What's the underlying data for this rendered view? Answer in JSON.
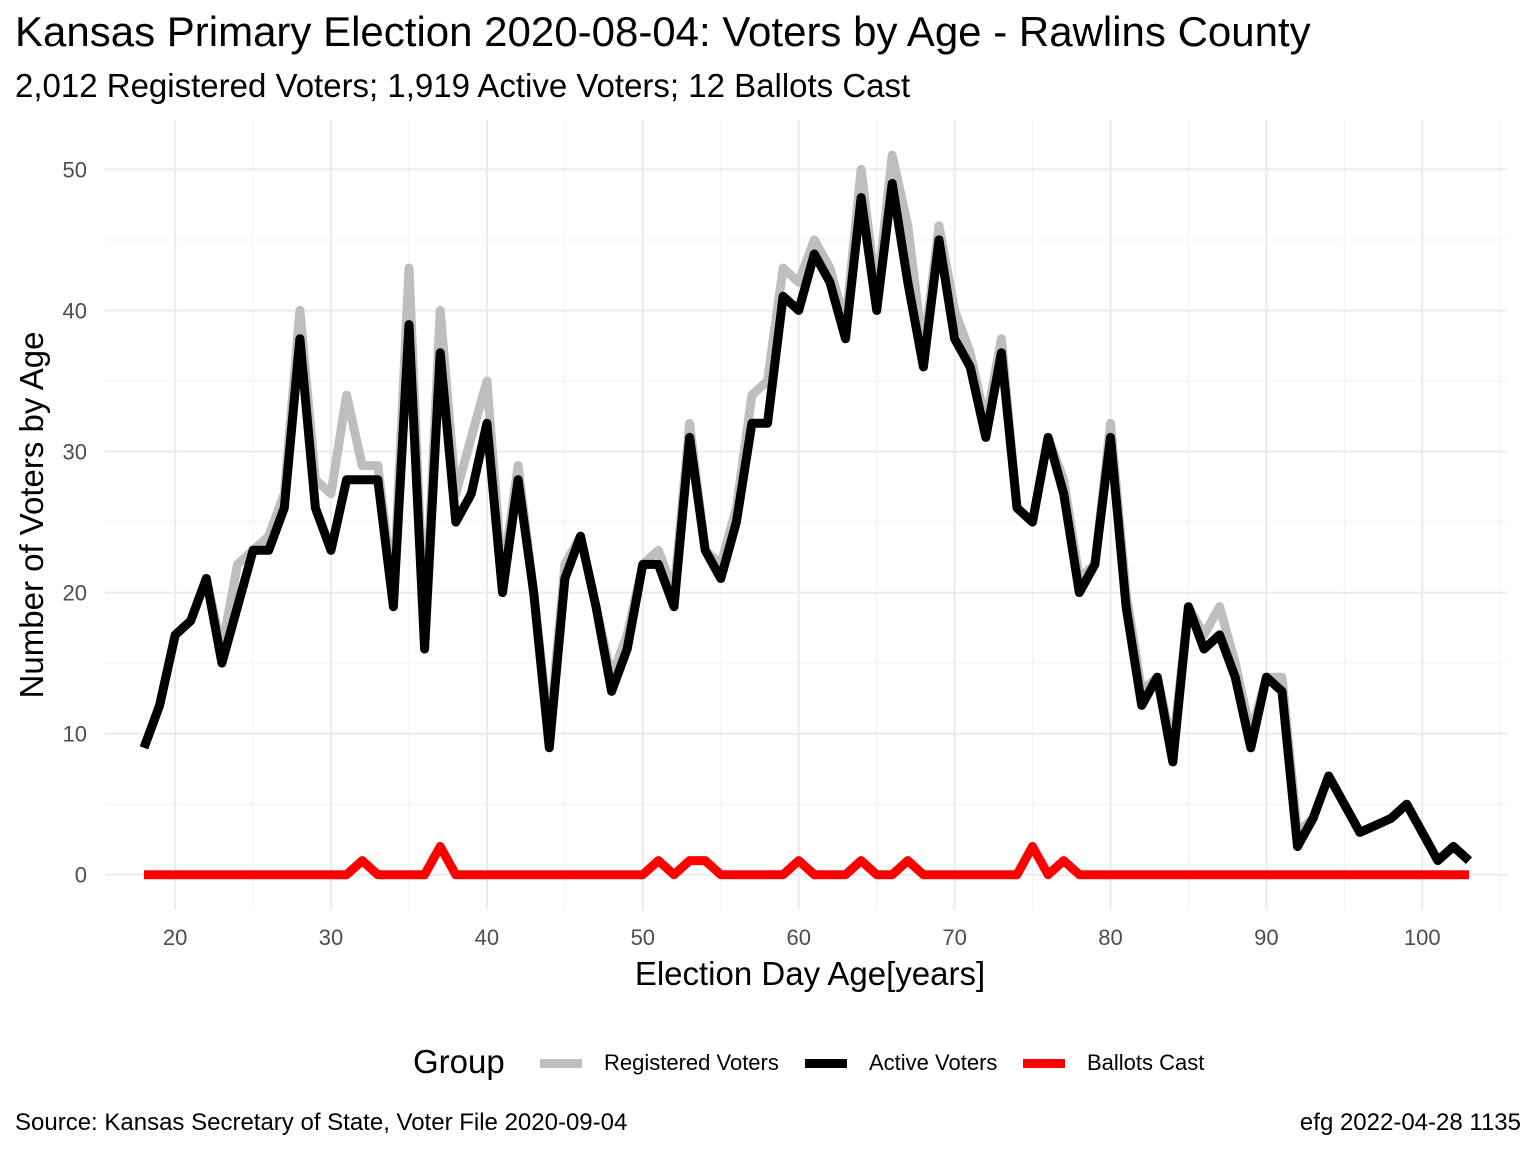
{
  "title": "Kansas Primary Election 2020-08-04:  Voters by Age - Rawlins County",
  "subtitle": "2,012 Registered Voters; 1,919 Active Voters; 12 Ballots Cast",
  "caption_left": "Source:  Kansas Secretary of State, Voter File  2020-09-04",
  "caption_right": "efg 2022-04-28 1135",
  "legend": {
    "title": "Group",
    "items": [
      {
        "label": "Registered Voters",
        "color": "#bebebe"
      },
      {
        "label": "Active Voters",
        "color": "#000000"
      },
      {
        "label": "Ballots Cast",
        "color": "#ff0000"
      }
    ]
  },
  "chart_data": {
    "type": "line",
    "xlabel": "Election Day Age[years]",
    "ylabel": "Number of Voters by Age",
    "xlim": [
      15.5,
      105.5
    ],
    "ylim": [
      -2.5,
      53.5
    ],
    "x_ticks": [
      20,
      30,
      40,
      50,
      60,
      70,
      80,
      90,
      100
    ],
    "y_ticks": [
      0,
      10,
      20,
      30,
      40,
      50
    ],
    "grid": true,
    "legend_position": "bottom",
    "series": [
      {
        "name": "Registered Voters",
        "color": "#bebebe",
        "points": [
          [
            18,
            9
          ],
          [
            19,
            12
          ],
          [
            20,
            17
          ],
          [
            21,
            18
          ],
          [
            22,
            21
          ],
          [
            23,
            16
          ],
          [
            24,
            22
          ],
          [
            25,
            23
          ],
          [
            26,
            24
          ],
          [
            27,
            27
          ],
          [
            28,
            40
          ],
          [
            29,
            28
          ],
          [
            30,
            27
          ],
          [
            31,
            34
          ],
          [
            32,
            29
          ],
          [
            33,
            29
          ],
          [
            34,
            20
          ],
          [
            35,
            43
          ],
          [
            36,
            17
          ],
          [
            37,
            40
          ],
          [
            38,
            27
          ],
          [
            39,
            31
          ],
          [
            40,
            35
          ],
          [
            41,
            21
          ],
          [
            42,
            29
          ],
          [
            43,
            20
          ],
          [
            44,
            10
          ],
          [
            45,
            22
          ],
          [
            46,
            24
          ],
          [
            47,
            19
          ],
          [
            48,
            14
          ],
          [
            49,
            17
          ],
          [
            50,
            22
          ],
          [
            51,
            23
          ],
          [
            52,
            20
          ],
          [
            53,
            32
          ],
          [
            54,
            23
          ],
          [
            55,
            22
          ],
          [
            56,
            26
          ],
          [
            57,
            34
          ],
          [
            58,
            35
          ],
          [
            59,
            43
          ],
          [
            60,
            42
          ],
          [
            61,
            45
          ],
          [
            62,
            43
          ],
          [
            63,
            39
          ],
          [
            64,
            50
          ],
          [
            65,
            41
          ],
          [
            66,
            51
          ],
          [
            67,
            46
          ],
          [
            68,
            37
          ],
          [
            69,
            46
          ],
          [
            70,
            40
          ],
          [
            71,
            37
          ],
          [
            72,
            32
          ],
          [
            73,
            38
          ],
          [
            74,
            26
          ],
          [
            75,
            25
          ],
          [
            76,
            31
          ],
          [
            77,
            28
          ],
          [
            78,
            21
          ],
          [
            79,
            22
          ],
          [
            80,
            32
          ],
          [
            81,
            20
          ],
          [
            82,
            13
          ],
          [
            83,
            14
          ],
          [
            84,
            9
          ],
          [
            85,
            19
          ],
          [
            86,
            17
          ],
          [
            87,
            19
          ],
          [
            88,
            15
          ],
          [
            89,
            10
          ],
          [
            90,
            14
          ],
          [
            91,
            14
          ],
          [
            92,
            3
          ],
          [
            93,
            4
          ],
          [
            94,
            7
          ],
          [
            95,
            5
          ],
          [
            96,
            3
          ],
          [
            97,
            3.5
          ],
          [
            98,
            4
          ],
          [
            99,
            5
          ],
          [
            100,
            3
          ],
          [
            101,
            1
          ],
          [
            102,
            2
          ],
          [
            103,
            1
          ]
        ]
      },
      {
        "name": "Active Voters",
        "color": "#000000",
        "points": [
          [
            18,
            9
          ],
          [
            19,
            12
          ],
          [
            20,
            17
          ],
          [
            21,
            18
          ],
          [
            22,
            21
          ],
          [
            23,
            15
          ],
          [
            24,
            19
          ],
          [
            25,
            23
          ],
          [
            26,
            23
          ],
          [
            27,
            26
          ],
          [
            28,
            38
          ],
          [
            29,
            26
          ],
          [
            30,
            23
          ],
          [
            31,
            28
          ],
          [
            32,
            28
          ],
          [
            33,
            28
          ],
          [
            34,
            19
          ],
          [
            35,
            39
          ],
          [
            36,
            16
          ],
          [
            37,
            37
          ],
          [
            38,
            25
          ],
          [
            39,
            27
          ],
          [
            40,
            32
          ],
          [
            41,
            20
          ],
          [
            42,
            28
          ],
          [
            43,
            20
          ],
          [
            44,
            9
          ],
          [
            45,
            21
          ],
          [
            46,
            24
          ],
          [
            47,
            19
          ],
          [
            48,
            13
          ],
          [
            49,
            16
          ],
          [
            50,
            22
          ],
          [
            51,
            22
          ],
          [
            52,
            19
          ],
          [
            53,
            31
          ],
          [
            54,
            23
          ],
          [
            55,
            21
          ],
          [
            56,
            25
          ],
          [
            57,
            32
          ],
          [
            58,
            32
          ],
          [
            59,
            41
          ],
          [
            60,
            40
          ],
          [
            61,
            44
          ],
          [
            62,
            42
          ],
          [
            63,
            38
          ],
          [
            64,
            48
          ],
          [
            65,
            40
          ],
          [
            66,
            49
          ],
          [
            67,
            42
          ],
          [
            68,
            36
          ],
          [
            69,
            45
          ],
          [
            70,
            38
          ],
          [
            71,
            36
          ],
          [
            72,
            31
          ],
          [
            73,
            37
          ],
          [
            74,
            26
          ],
          [
            75,
            25
          ],
          [
            76,
            31
          ],
          [
            77,
            27
          ],
          [
            78,
            20
          ],
          [
            79,
            22
          ],
          [
            80,
            31
          ],
          [
            81,
            19
          ],
          [
            82,
            12
          ],
          [
            83,
            14
          ],
          [
            84,
            8
          ],
          [
            85,
            19
          ],
          [
            86,
            16
          ],
          [
            87,
            17
          ],
          [
            88,
            14
          ],
          [
            89,
            9
          ],
          [
            90,
            14
          ],
          [
            91,
            13
          ],
          [
            92,
            2
          ],
          [
            93,
            4
          ],
          [
            94,
            7
          ],
          [
            95,
            5
          ],
          [
            96,
            3
          ],
          [
            97,
            3.5
          ],
          [
            98,
            4
          ],
          [
            99,
            5
          ],
          [
            100,
            3
          ],
          [
            101,
            1
          ],
          [
            102,
            2
          ],
          [
            103,
            1
          ]
        ]
      },
      {
        "name": "Ballots Cast",
        "color": "#ff0000",
        "points": [
          [
            18,
            0
          ],
          [
            31,
            0
          ],
          [
            32,
            1
          ],
          [
            33,
            0
          ],
          [
            36,
            0
          ],
          [
            37,
            2
          ],
          [
            38,
            0
          ],
          [
            50,
            0
          ],
          [
            51,
            1
          ],
          [
            52,
            0
          ],
          [
            53,
            1
          ],
          [
            54,
            1
          ],
          [
            55,
            0
          ],
          [
            59,
            0
          ],
          [
            60,
            1
          ],
          [
            61,
            0
          ],
          [
            63,
            0
          ],
          [
            64,
            1
          ],
          [
            65,
            0
          ],
          [
            66,
            0
          ],
          [
            67,
            1
          ],
          [
            68,
            0
          ],
          [
            74,
            0
          ],
          [
            75,
            2
          ],
          [
            76,
            0
          ],
          [
            77,
            1
          ],
          [
            78,
            0
          ],
          [
            103,
            0
          ]
        ]
      }
    ]
  }
}
